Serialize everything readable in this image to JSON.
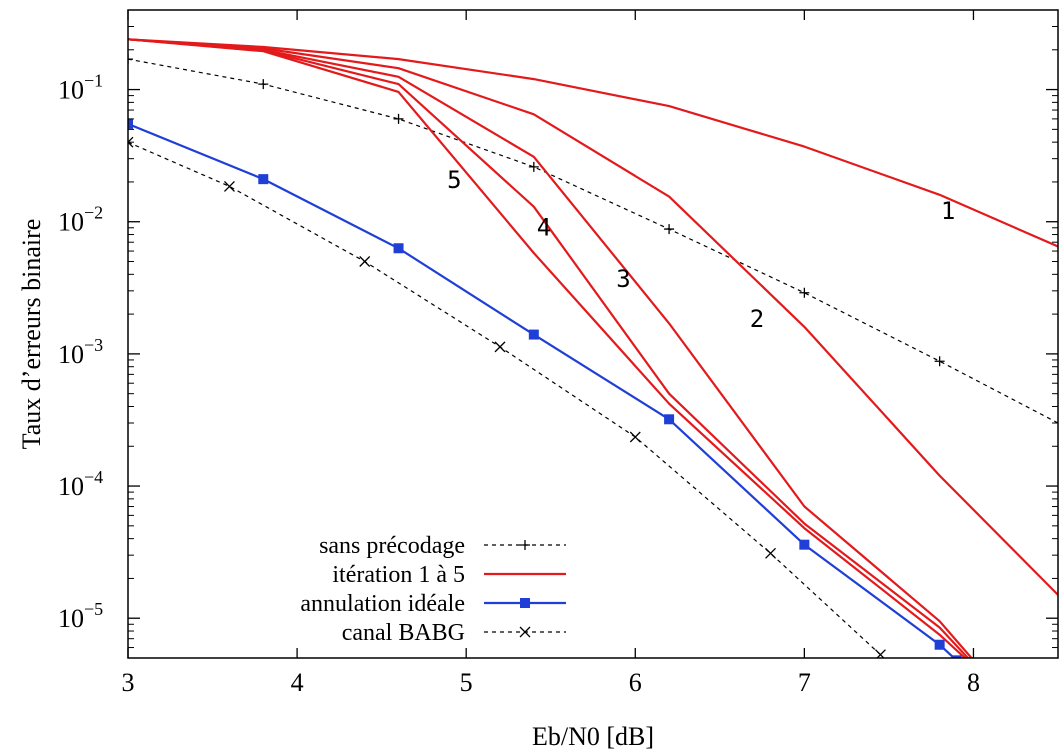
{
  "chart_data": {
    "type": "line",
    "xlabel": "Eb/N0 [dB]",
    "ylabel": "Taux d’erreurs binaire",
    "xlim": [
      3,
      8.5
    ],
    "ylim": [
      5e-06,
      0.4
    ],
    "yscale": "log",
    "xticks": [
      3,
      4,
      5,
      6,
      7,
      8
    ],
    "yticks": [
      {
        "value": 0.1,
        "mantissa": "10",
        "exp": "−1"
      },
      {
        "value": 0.01,
        "mantissa": "10",
        "exp": "−2"
      },
      {
        "value": 0.001,
        "mantissa": "10",
        "exp": "−3"
      },
      {
        "value": 0.0001,
        "mantissa": "10",
        "exp": "−4"
      },
      {
        "value": 1e-05,
        "mantissa": "10",
        "exp": "−5"
      }
    ],
    "grid": false,
    "legend_position": "bottom-left",
    "series": [
      {
        "name": "sans précodage",
        "color": "#000000",
        "dash": "dashed",
        "marker": "plus",
        "legend": true,
        "x": [
          3,
          3.8,
          4.6,
          5.4,
          6.2,
          7,
          7.8,
          8.5
        ],
        "y": [
          0.17,
          0.11,
          0.06,
          0.026,
          0.0088,
          0.0029,
          0.00088,
          0.0003
        ]
      },
      {
        "name": "itération 1 à 5",
        "color": "#e31a1c",
        "dash": "solid",
        "marker": "none",
        "legend": true,
        "x": [
          3,
          3.8,
          4.6,
          5.4,
          6.2,
          7,
          7.8,
          8.5
        ],
        "y": [
          0.24,
          0.21,
          0.17,
          0.12,
          0.075,
          0.037,
          0.016,
          0.0065
        ]
      },
      {
        "color": "#e31a1c",
        "dash": "solid",
        "marker": "none",
        "legend": false,
        "x": [
          3,
          3.8,
          4.6,
          5.4,
          6.2,
          7,
          7.8,
          8.5
        ],
        "y": [
          0.24,
          0.205,
          0.145,
          0.065,
          0.0155,
          0.0016,
          0.00012,
          1.5e-05
        ]
      },
      {
        "color": "#e31a1c",
        "dash": "solid",
        "marker": "none",
        "legend": false,
        "x": [
          3,
          3.8,
          4.6,
          5.4,
          6.2,
          7,
          7.8,
          8
        ],
        "y": [
          0.24,
          0.2,
          0.125,
          0.031,
          0.0017,
          7e-05,
          9.5e-06,
          4.8e-06
        ]
      },
      {
        "color": "#e31a1c",
        "dash": "solid",
        "marker": "none",
        "legend": false,
        "x": [
          3,
          3.8,
          4.6,
          5.4,
          6.2,
          7,
          7.8,
          8
        ],
        "y": [
          0.24,
          0.198,
          0.11,
          0.013,
          0.0005,
          5.2e-05,
          8.5e-06,
          4.5e-06
        ]
      },
      {
        "color": "#e31a1c",
        "dash": "solid",
        "marker": "none",
        "legend": false,
        "x": [
          3,
          3.8,
          4.6,
          5.4,
          6.2,
          7,
          7.8,
          7.95
        ],
        "y": [
          0.24,
          0.195,
          0.096,
          0.0058,
          0.00042,
          4.8e-05,
          7.5e-06,
          5e-06
        ]
      },
      {
        "name": "annulation idéale",
        "color": "#1f3fd6",
        "dash": "solid",
        "marker": "square",
        "legend": true,
        "x": [
          3,
          3.8,
          4.6,
          5.4,
          6.2,
          7,
          7.8,
          7.9
        ],
        "y": [
          0.055,
          0.021,
          0.0063,
          0.0014,
          0.00032,
          3.6e-05,
          6.3e-06,
          4.8e-06
        ]
      },
      {
        "name": "canal BABG",
        "color": "#000000",
        "dash": "dashed",
        "marker": "cross",
        "legend": true,
        "x": [
          3,
          3.6,
          4.4,
          5.2,
          6,
          6.8,
          7.45
        ],
        "y": [
          0.04,
          0.0185,
          0.005,
          0.00113,
          0.000235,
          3.1e-05,
          5.3e-06
        ]
      }
    ],
    "curve_labels": [
      {
        "text": "1",
        "x": 7.85,
        "y": 0.0105
      },
      {
        "text": "2",
        "x": 6.72,
        "y": 0.0016
      },
      {
        "text": "3",
        "x": 5.93,
        "y": 0.0032
      },
      {
        "text": "4",
        "x": 5.46,
        "y": 0.0079
      },
      {
        "text": "5",
        "x": 4.93,
        "y": 0.018
      }
    ]
  }
}
